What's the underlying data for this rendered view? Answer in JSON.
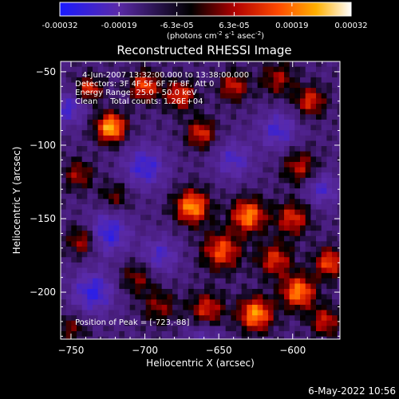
{
  "colorbar": {
    "tick_labels": [
      "-0.00032",
      "-0.00019",
      "-6.3e-05",
      "6.3e-05",
      "0.00019",
      "0.00032"
    ],
    "tick_values": [
      -0.00032,
      -0.00019,
      -6.3e-05,
      6.3e-05,
      0.00019,
      0.00032
    ],
    "range": [
      -0.00032,
      0.00032
    ],
    "units_prefix": "(photons cm",
    "units_exp1": "-2",
    "units_mid": " s",
    "units_exp2": "-1",
    "units_suffix": " asec",
    "units_exp3": "-2",
    "units_close": ")"
  },
  "chart_data": {
    "type": "heatmap",
    "title": "Reconstructed RHESSI Image",
    "xlabel": "Heliocentric X (arcsec)",
    "ylabel": "Heliocentric Y (arcsec)",
    "xlim": [
      -757,
      -568
    ],
    "ylim": [
      -232,
      -43
    ],
    "x_ticks": [
      -750,
      -700,
      -650,
      -600
    ],
    "x_tick_labels": [
      "−750",
      "−700",
      "−650",
      "−600"
    ],
    "y_ticks": [
      -200,
      -150,
      -100,
      -50
    ],
    "y_tick_labels": [
      "−200",
      "−150",
      "−100",
      "−50"
    ],
    "info_lines": [
      "4-Jun-2007 13:32:00.000 to 13:38:00.000",
      "Detectors: 3F 4F 5F 6F 7F 8F, Att 0",
      "Energy Range: 25.0 - 50.0 keV",
      "Clean     Total counts: 1.26E+04"
    ],
    "peak_label": "Position of Peak = [-723,-88]",
    "peak": [
      -723,
      -88
    ],
    "colormap": "blue-purple-black-red-orange-yellow-white",
    "blobs": [
      {
        "x": -723,
        "y": -88,
        "v": 1.0,
        "s": 7
      },
      {
        "x": -738,
        "y": -62,
        "v": 0.65,
        "s": 6
      },
      {
        "x": -700,
        "y": -60,
        "v": 0.7,
        "s": 7
      },
      {
        "x": -676,
        "y": -66,
        "v": 0.65,
        "s": 7
      },
      {
        "x": -662,
        "y": -92,
        "v": 0.6,
        "s": 7
      },
      {
        "x": -640,
        "y": -60,
        "v": 0.55,
        "s": 7
      },
      {
        "x": -610,
        "y": -55,
        "v": 0.45,
        "s": 8
      },
      {
        "x": -588,
        "y": -70,
        "v": 0.6,
        "s": 7
      },
      {
        "x": -595,
        "y": -115,
        "v": 0.5,
        "s": 8
      },
      {
        "x": -745,
        "y": -120,
        "v": 0.45,
        "s": 7
      },
      {
        "x": -720,
        "y": -135,
        "v": 0.35,
        "s": 7
      },
      {
        "x": -742,
        "y": -165,
        "v": 0.55,
        "s": 7
      },
      {
        "x": -705,
        "y": -190,
        "v": 0.4,
        "s": 8
      },
      {
        "x": -668,
        "y": -142,
        "v": 0.9,
        "s": 8
      },
      {
        "x": -630,
        "y": -148,
        "v": 0.85,
        "s": 8
      },
      {
        "x": -648,
        "y": -172,
        "v": 0.7,
        "s": 9
      },
      {
        "x": -600,
        "y": -150,
        "v": 0.6,
        "s": 8
      },
      {
        "x": -612,
        "y": -178,
        "v": 0.6,
        "s": 8
      },
      {
        "x": -625,
        "y": -215,
        "v": 0.9,
        "s": 8
      },
      {
        "x": -596,
        "y": -200,
        "v": 0.85,
        "s": 8
      },
      {
        "x": -575,
        "y": -180,
        "v": 0.7,
        "s": 7
      },
      {
        "x": -658,
        "y": -212,
        "v": 0.6,
        "s": 8
      },
      {
        "x": -578,
        "y": -220,
        "v": 0.55,
        "s": 7
      },
      {
        "x": -690,
        "y": -210,
        "v": 0.4,
        "s": 8
      },
      {
        "x": -750,
        "y": -225,
        "v": 0.35,
        "s": 7
      },
      {
        "x": -700,
        "y": -115,
        "v": -0.55,
        "s": 10
      },
      {
        "x": -752,
        "y": -75,
        "v": -0.5,
        "s": 8
      },
      {
        "x": -640,
        "y": -110,
        "v": -0.45,
        "s": 9
      },
      {
        "x": -610,
        "y": -90,
        "v": -0.5,
        "s": 9
      },
      {
        "x": -725,
        "y": -160,
        "v": -0.6,
        "s": 10
      },
      {
        "x": -735,
        "y": -200,
        "v": -0.6,
        "s": 10
      },
      {
        "x": -690,
        "y": -175,
        "v": -0.45,
        "s": 9
      },
      {
        "x": -580,
        "y": -130,
        "v": -0.45,
        "s": 8
      },
      {
        "x": -660,
        "y": -230,
        "v": -0.3,
        "s": 8
      }
    ]
  },
  "footer": {
    "timestamp": "6-May-2022 10:56"
  }
}
